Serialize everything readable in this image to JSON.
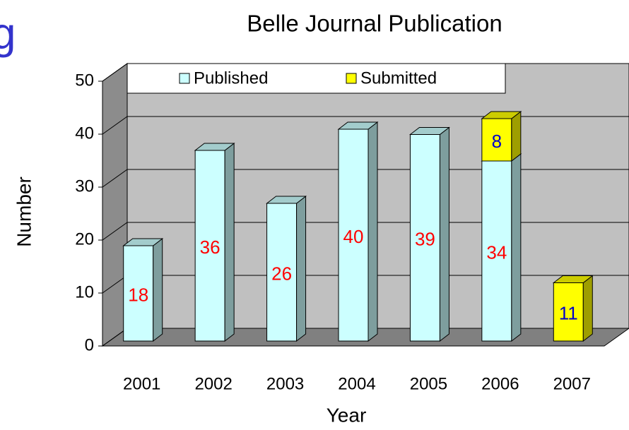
{
  "fragment": "g",
  "chart_data": {
    "type": "bar3d-stacked",
    "title": "Belle Journal Publication",
    "x_label": "Year",
    "y_label": "Number",
    "categories": [
      "2001",
      "2002",
      "2003",
      "2004",
      "2005",
      "2006",
      "2007"
    ],
    "series": [
      {
        "name": "Published",
        "color": "#ccffff",
        "label_color": "#ff0000",
        "values": [
          18,
          36,
          26,
          40,
          39,
          34,
          null
        ]
      },
      {
        "name": "Submitted",
        "color": "#ffff00",
        "label_color": "#0000cc",
        "values": [
          null,
          null,
          null,
          null,
          null,
          8,
          11
        ]
      }
    ],
    "ylim": [
      0,
      50
    ],
    "yticks": [
      0,
      10,
      20,
      30,
      40,
      50
    ],
    "grid": true,
    "legend": "top"
  }
}
